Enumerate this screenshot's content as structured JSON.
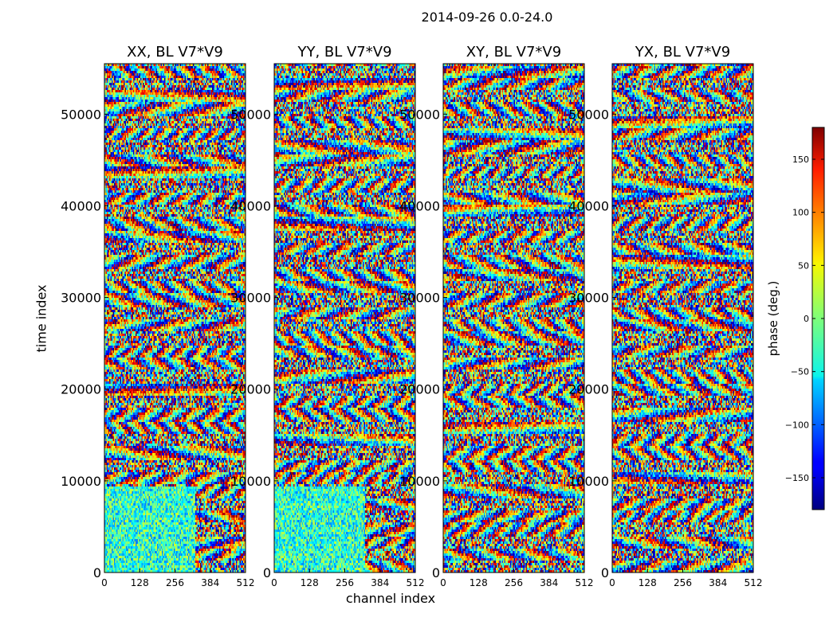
{
  "chart_data": {
    "type": "heatmap",
    "suptitle": "2014-09-26 0.0-24.0",
    "xlabel": "channel index",
    "ylabel": "time index",
    "colorbar": {
      "label": "phase (deg.)",
      "colormap": "jet",
      "range": [
        -180,
        180
      ],
      "ticks": [
        "150",
        "100",
        "50",
        "0",
        "−50",
        "−100",
        "−150"
      ],
      "tick_values": [
        150,
        100,
        50,
        0,
        -50,
        -100,
        -150
      ]
    },
    "x_range": [
      0,
      512
    ],
    "y_range": [
      0,
      55500
    ],
    "x_ticks": [
      "0",
      "128",
      "256",
      "384",
      "512"
    ],
    "x_tick_values": [
      0,
      128,
      256,
      384,
      512
    ],
    "y_ticks": [
      "0",
      "10000",
      "20000",
      "30000",
      "40000",
      "50000"
    ],
    "y_tick_values": [
      0,
      10000,
      20000,
      30000,
      40000,
      50000
    ],
    "panels": [
      {
        "title": "XX, BL V7*V9"
      },
      {
        "title": "YY, BL V7*V9"
      },
      {
        "title": "XY, BL V7*V9"
      },
      {
        "title": "YX, BL V7*V9"
      }
    ]
  }
}
